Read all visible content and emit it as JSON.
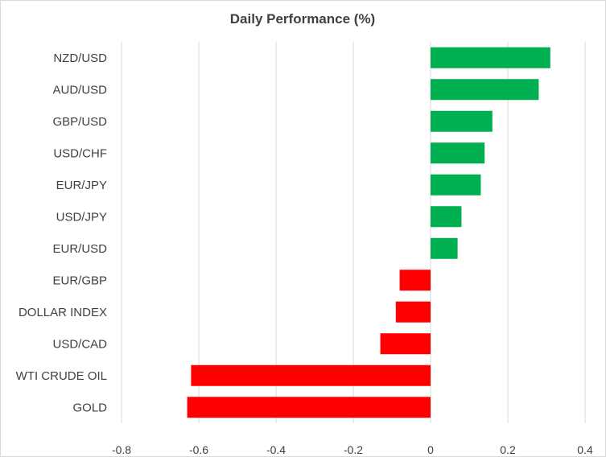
{
  "chart_data": {
    "type": "bar",
    "orientation": "horizontal",
    "title": "Daily Performance (%)",
    "categories": [
      "NZD/USD",
      "AUD/USD",
      "GBP/USD",
      "USD/CHF",
      "EUR/JPY",
      "USD/JPY",
      "EUR/USD",
      "EUR/GBP",
      "DOLLAR INDEX",
      "USD/CAD",
      "WTI CRUDE OIL",
      "GOLD"
    ],
    "values": [
      0.31,
      0.28,
      0.16,
      0.14,
      0.13,
      0.08,
      0.07,
      -0.08,
      -0.09,
      -0.13,
      -0.62,
      -0.63
    ],
    "xlim": [
      -0.8,
      0.4
    ],
    "xticks": [
      -0.8,
      -0.6,
      -0.4,
      -0.2,
      0,
      0.2,
      0.4
    ],
    "xtick_labels": [
      "-0.8",
      "-0.6",
      "-0.4",
      "-0.2",
      "0",
      "0.2",
      "0.4"
    ],
    "grid": true,
    "colors": {
      "positive": "#00b050",
      "negative": "#ff0000",
      "grid": "#d9d9d9",
      "text": "#404040"
    }
  }
}
